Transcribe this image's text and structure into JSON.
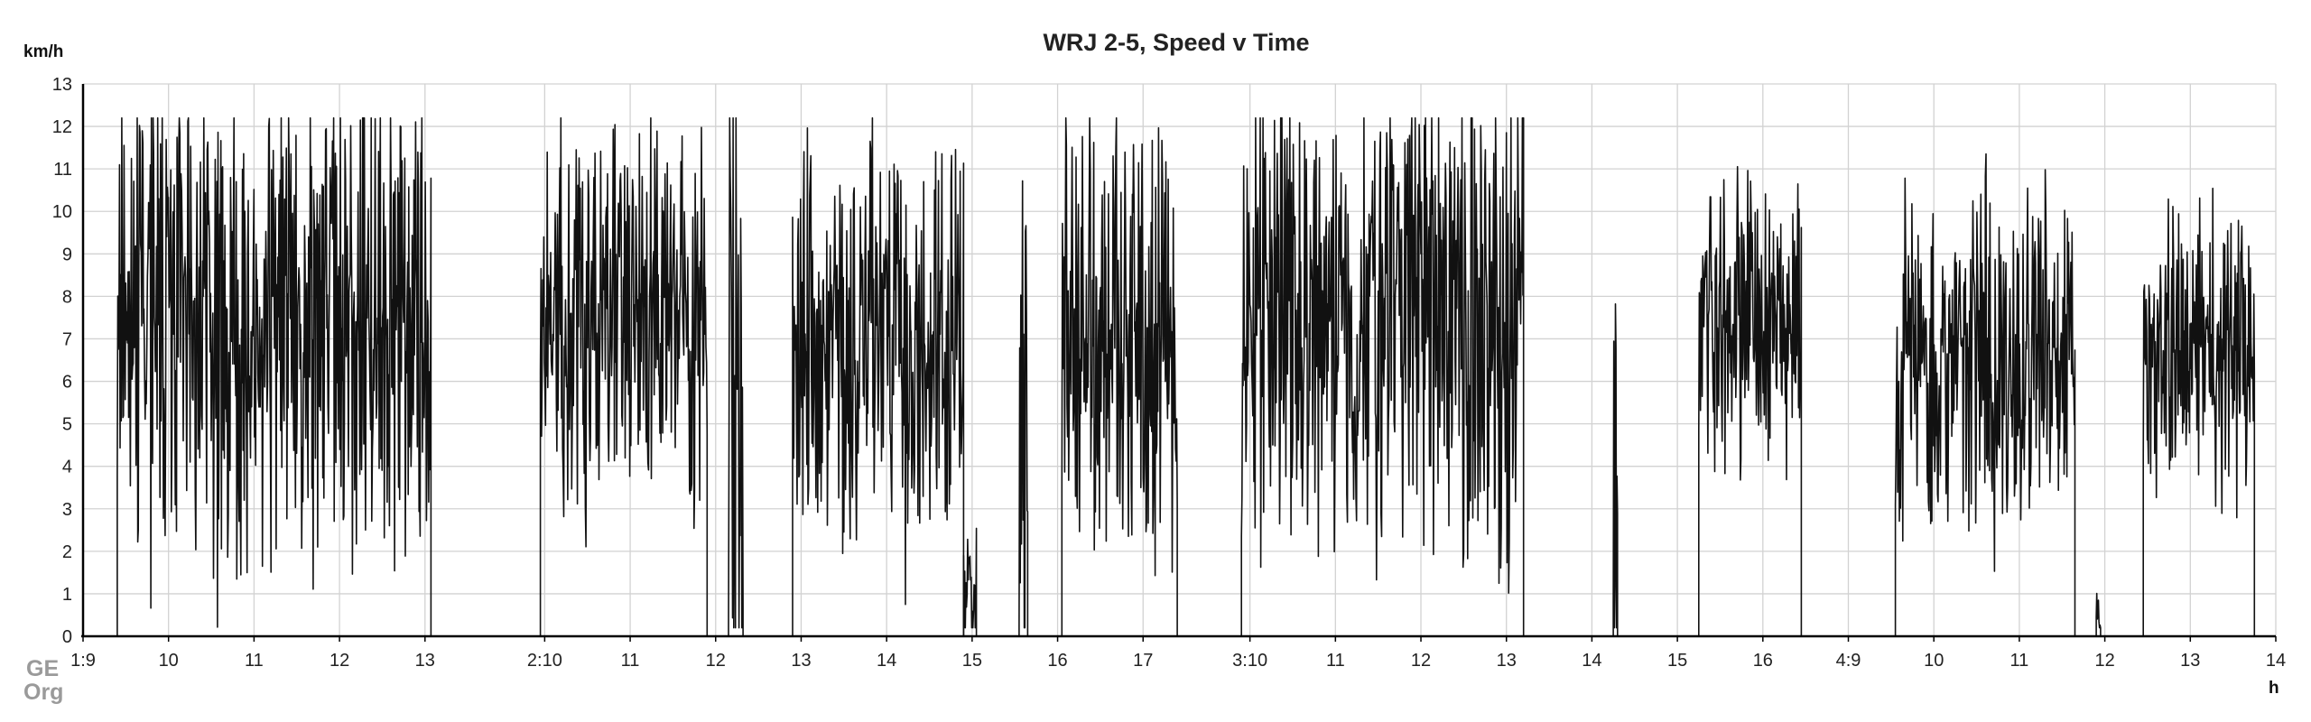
{
  "chart_data": {
    "type": "line",
    "title": "WRJ 2-5, Speed v Time",
    "ylabel": "km/h",
    "xlabel": "h",
    "ylim": [
      0,
      13
    ],
    "grid": true,
    "legend": "none",
    "y_ticks": [
      "0",
      "1",
      "2",
      "3",
      "4",
      "5",
      "6",
      "7",
      "8",
      "9",
      "10",
      "11",
      "12",
      "13"
    ],
    "x_ticks": [
      {
        "x": 0,
        "label": "1:9"
      },
      {
        "x": 1,
        "label": "10"
      },
      {
        "x": 2,
        "label": "11"
      },
      {
        "x": 3,
        "label": "12"
      },
      {
        "x": 4,
        "label": "13"
      },
      {
        "x": 5.4,
        "label": "2:10"
      },
      {
        "x": 6.4,
        "label": "11"
      },
      {
        "x": 7.4,
        "label": "12"
      },
      {
        "x": 8.4,
        "label": "13"
      },
      {
        "x": 9.4,
        "label": "14"
      },
      {
        "x": 10.4,
        "label": "15"
      },
      {
        "x": 11.4,
        "label": "16"
      },
      {
        "x": 12.4,
        "label": "17"
      },
      {
        "x": 13.65,
        "label": "3:10"
      },
      {
        "x": 14.65,
        "label": "11"
      },
      {
        "x": 15.65,
        "label": "12"
      },
      {
        "x": 16.65,
        "label": "13"
      },
      {
        "x": 17.65,
        "label": "14"
      },
      {
        "x": 18.65,
        "label": "15"
      },
      {
        "x": 19.65,
        "label": "16"
      },
      {
        "x": 20.65,
        "label": "4:9"
      },
      {
        "x": 21.65,
        "label": "10"
      },
      {
        "x": 22.65,
        "label": "11"
      },
      {
        "x": 23.65,
        "label": "12"
      },
      {
        "x": 24.65,
        "label": "13"
      },
      {
        "x": 25.65,
        "label": "14"
      }
    ],
    "xlim": [
      0,
      25.65
    ],
    "series_color": "#111111",
    "segments": [
      {
        "start": 0.4,
        "end": 4.07,
        "mean": 7.2,
        "spread": 2.7,
        "seed": 11
      },
      {
        "start": 5.35,
        "end": 7.3,
        "mean": 7.5,
        "spread": 2.0,
        "seed": 23
      },
      {
        "start": 7.55,
        "end": 7.72,
        "mean": 4.5,
        "spread": 4.5,
        "seed": 31
      },
      {
        "start": 8.3,
        "end": 10.3,
        "mean": 6.9,
        "spread": 2.4,
        "seed": 37
      },
      {
        "start": 10.3,
        "end": 10.45,
        "mean": 1.0,
        "spread": 0.7,
        "seed": 41
      },
      {
        "start": 10.95,
        "end": 11.05,
        "mean": 5.0,
        "spread": 4.8,
        "seed": 43
      },
      {
        "start": 11.45,
        "end": 12.8,
        "mean": 7.0,
        "spread": 2.4,
        "seed": 47
      },
      {
        "start": 13.55,
        "end": 16.85,
        "mean": 7.6,
        "spread": 2.5,
        "seed": 53
      },
      {
        "start": 17.9,
        "end": 17.95,
        "mean": 3.0,
        "spread": 2.8,
        "seed": 59
      },
      {
        "start": 18.9,
        "end": 20.1,
        "mean": 7.4,
        "spread": 1.7,
        "seed": 61
      },
      {
        "start": 21.2,
        "end": 23.3,
        "mean": 6.6,
        "spread": 1.8,
        "seed": 67
      },
      {
        "start": 23.55,
        "end": 23.6,
        "mean": 0.5,
        "spread": 0.3,
        "seed": 71
      },
      {
        "start": 24.1,
        "end": 25.4,
        "mean": 6.6,
        "spread": 1.6,
        "seed": 73
      }
    ]
  },
  "logo": {
    "line1": "GE",
    "line2": "Org"
  }
}
